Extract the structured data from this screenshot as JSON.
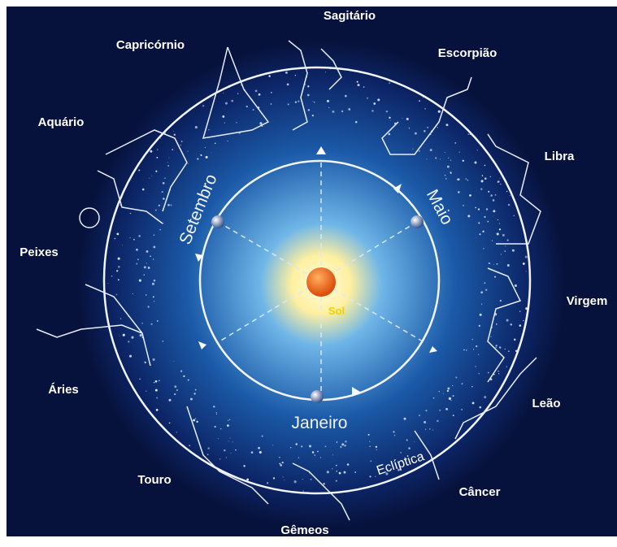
{
  "constellations": [
    "Sagitário",
    "Capricórnio",
    "Escorpião",
    "Aquário",
    "Libra",
    "Peixes",
    "Virgem",
    "Áries",
    "Leão",
    "Touro",
    "Câncer",
    "Gêmeos"
  ],
  "orbit": {
    "months": [
      "Setembro",
      "Maio",
      "Janeiro"
    ]
  },
  "ecliptic_label": "Eclíptica",
  "sun_label": "Sol"
}
